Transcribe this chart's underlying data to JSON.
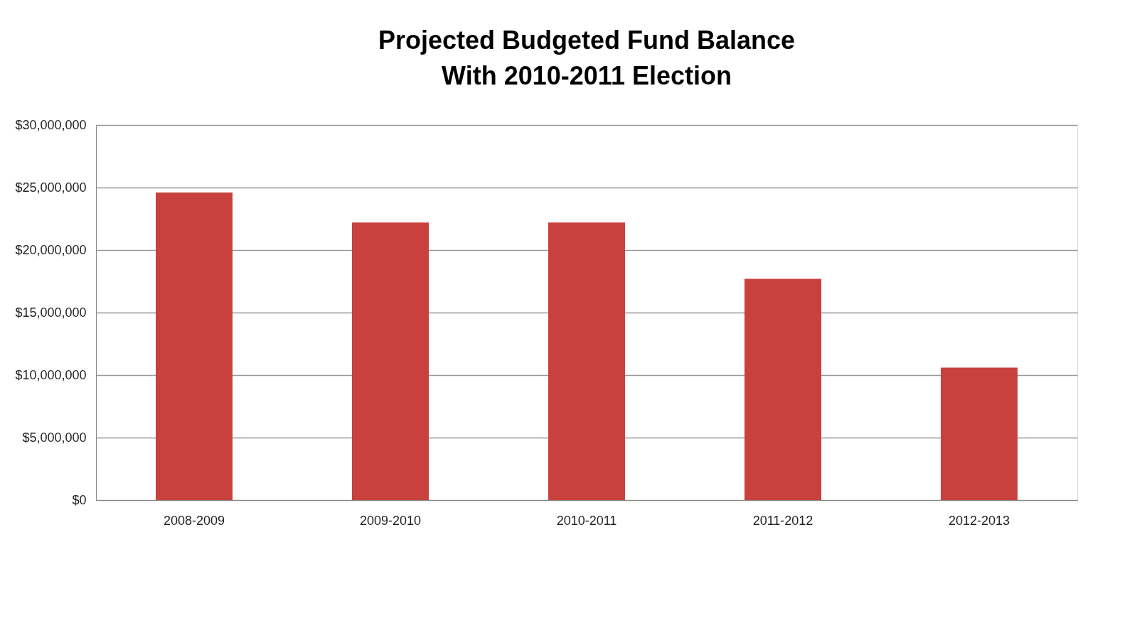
{
  "chart_data": {
    "type": "bar",
    "title": [
      "Projected Budgeted Fund Balance",
      "With 2010-2011 Election"
    ],
    "categories": [
      "2008-2009",
      "2009-2010",
      "2010-2011",
      "2011-2012",
      "2012-2013"
    ],
    "values": [
      24600000,
      22200000,
      22200000,
      17700000,
      10600000
    ],
    "color": "#c8413d",
    "ylim": [
      0,
      30000000
    ],
    "yticks": [
      {
        "value": 0,
        "label": "$0"
      },
      {
        "value": 5000000,
        "label": "$5,000,000"
      },
      {
        "value": 10000000,
        "label": "$10,000,000"
      },
      {
        "value": 15000000,
        "label": "$15,000,000"
      },
      {
        "value": 20000000,
        "label": "$20,000,000"
      },
      {
        "value": 25000000,
        "label": "$25,000,000"
      },
      {
        "value": 30000000,
        "label": "$30,000,000"
      }
    ],
    "grid": "y"
  }
}
